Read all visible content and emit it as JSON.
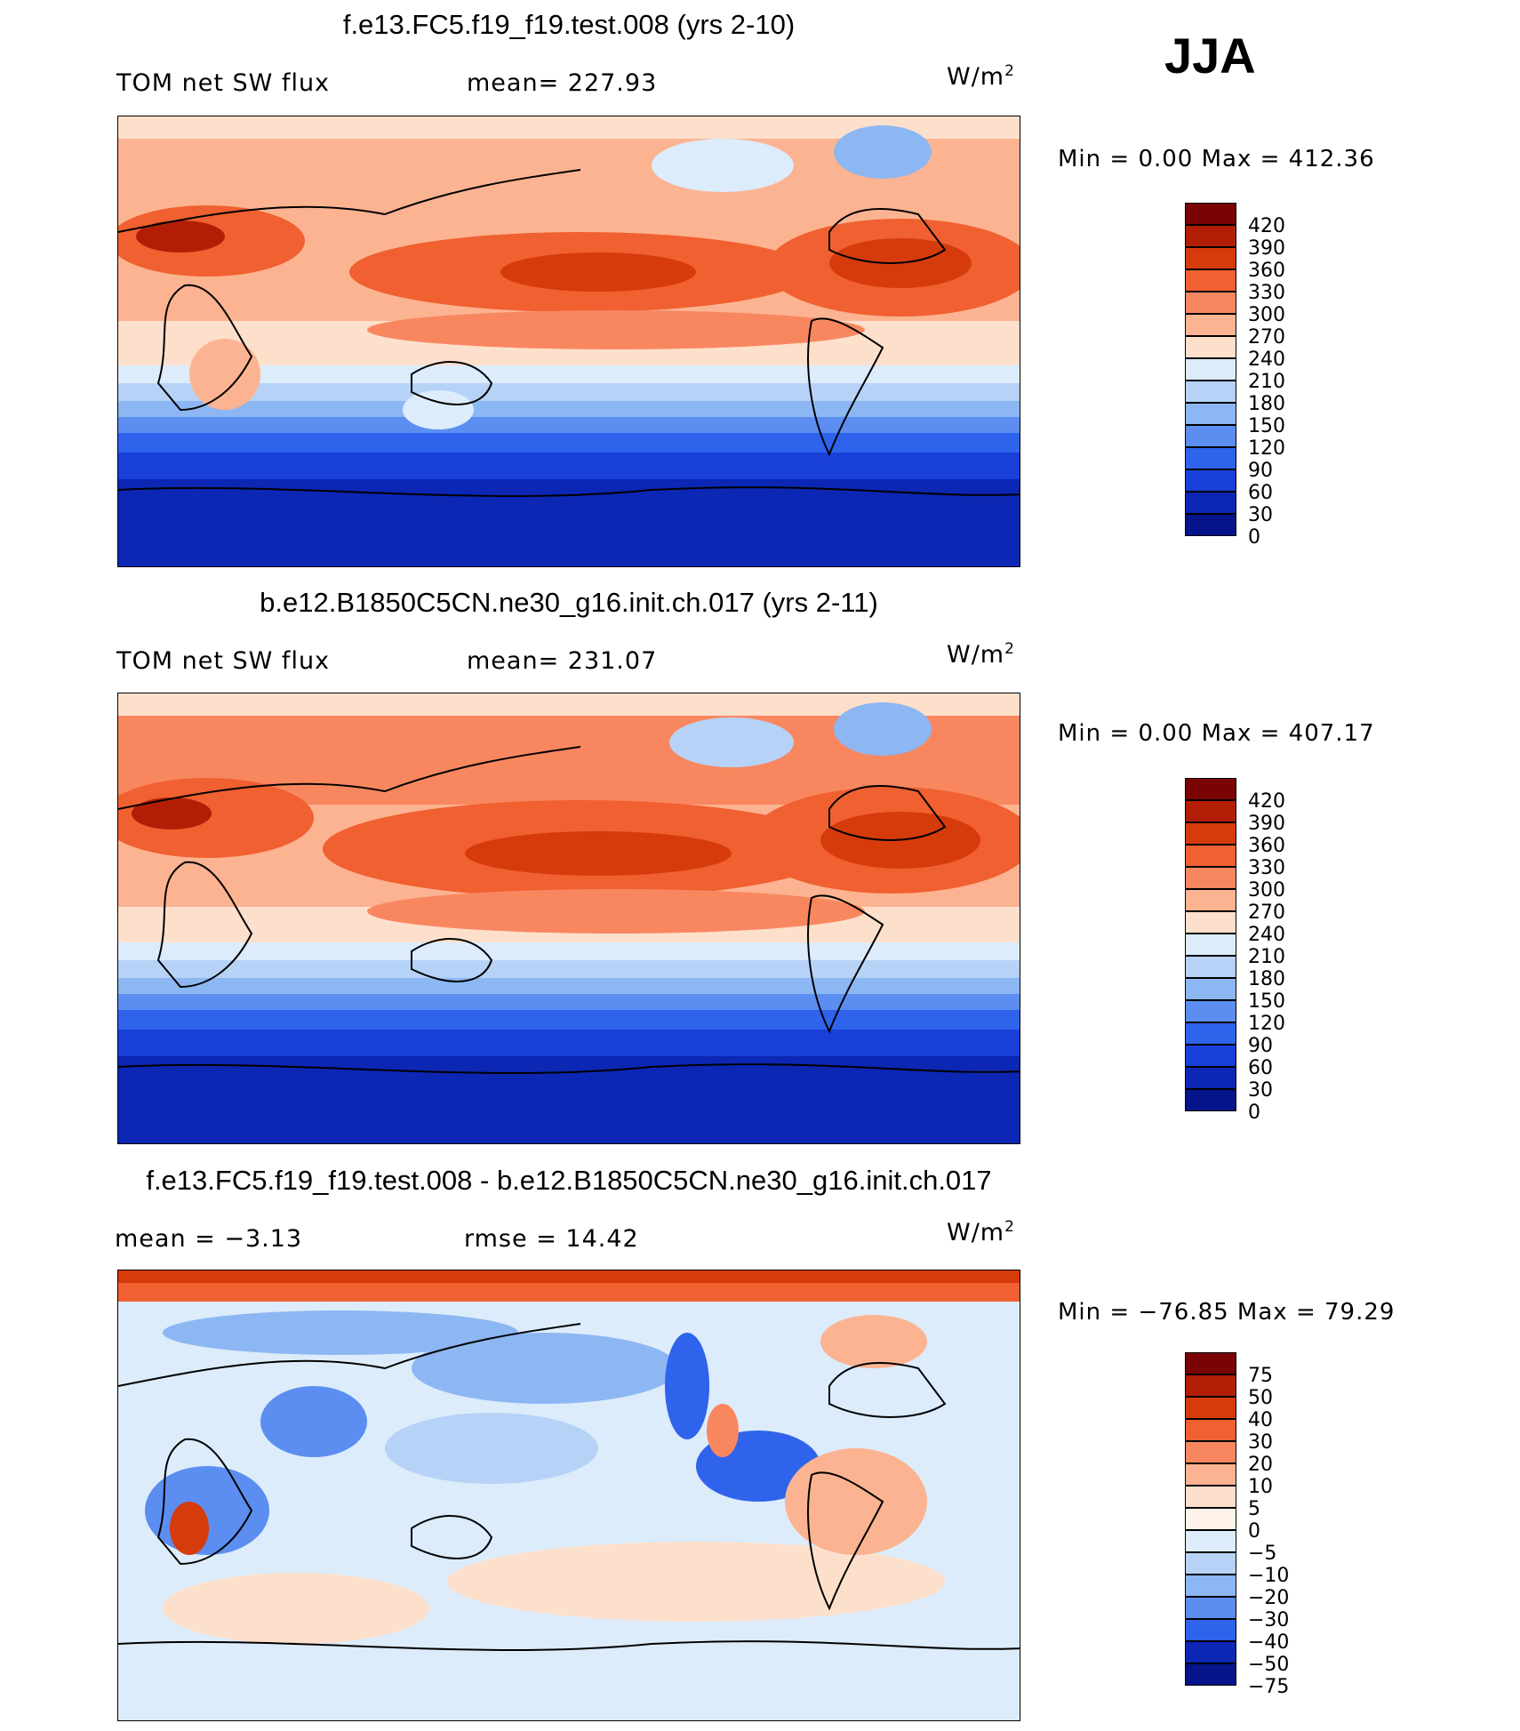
{
  "season": "JJA",
  "units_label": "W/m",
  "units_sup": "2",
  "panels": [
    {
      "title": "f.e13.FC5.f19_f19.test.008 (yrs 2-10)",
      "left_label": "TOM net SW flux",
      "mid_label": "mean=  227.93",
      "minmax": "Min =     0.00 Max  =  412.36",
      "colorbar_ticks": [
        "420",
        "390",
        "360",
        "330",
        "300",
        "270",
        "240",
        "210",
        "180",
        "150",
        "120",
        "90",
        "60",
        "30",
        "0"
      ],
      "colorbar_colors": [
        "#7a0403",
        "#b21e05",
        "#d63b0c",
        "#f06030",
        "#f88760",
        "#fcb391",
        "#fde0cc",
        "#dcecfb",
        "#b6d3f7",
        "#8db7f2",
        "#5b8ef0",
        "#2f63ec",
        "#1840d8",
        "#0b27b3",
        "#05148a"
      ]
    },
    {
      "title": "b.e12.B1850C5CN.ne30_g16.init.ch.017 (yrs 2-11)",
      "left_label": "TOM net SW flux",
      "mid_label": "mean=  231.07",
      "minmax": "Min =     0.00 Max  =  407.17",
      "colorbar_ticks": [
        "420",
        "390",
        "360",
        "330",
        "300",
        "270",
        "240",
        "210",
        "180",
        "150",
        "120",
        "90",
        "60",
        "30",
        "0"
      ],
      "colorbar_colors": [
        "#7a0403",
        "#b21e05",
        "#d63b0c",
        "#f06030",
        "#f88760",
        "#fcb391",
        "#fde0cc",
        "#dcecfb",
        "#b6d3f7",
        "#8db7f2",
        "#5b8ef0",
        "#2f63ec",
        "#1840d8",
        "#0b27b3",
        "#05148a"
      ]
    },
    {
      "title": "f.e13.FC5.f19_f19.test.008 - b.e12.B1850C5CN.ne30_g16.init.ch.017",
      "left_label": "mean  =    −3.13",
      "mid_label": "rmse  =    14.42",
      "minmax": "Min  = −76.85 Max  =   79.29",
      "colorbar_ticks": [
        "75",
        "50",
        "40",
        "30",
        "20",
        "10",
        "5",
        "0",
        "−5",
        "−10",
        "−20",
        "−30",
        "−40",
        "−50",
        "−75"
      ],
      "colorbar_colors": [
        "#7a0403",
        "#b21e05",
        "#d63b0c",
        "#f06030",
        "#f88760",
        "#fcb391",
        "#fde0cc",
        "#fdf3ea",
        "#dcecfb",
        "#b6d3f7",
        "#8db7f2",
        "#5b8ef0",
        "#2f63ec",
        "#0b27b3",
        "#05148a"
      ]
    }
  ]
}
